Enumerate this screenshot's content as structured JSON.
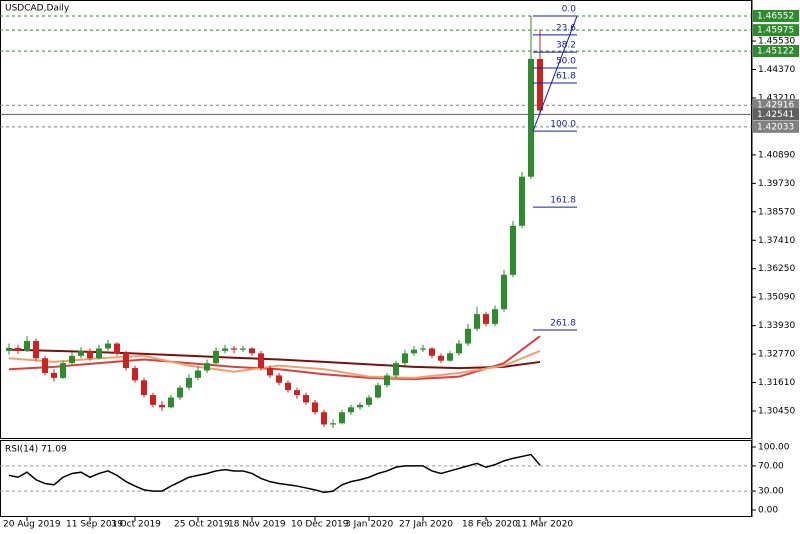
{
  "chart_data": [
    {
      "type": "candlestick",
      "title": "USDCAD,Daily",
      "categories": [
        null,
        null,
        "20 Aug 2019",
        null,
        null,
        null,
        null,
        null,
        null,
        "11 Sep 2019",
        null,
        null,
        null,
        null,
        "3 Oct 2019",
        null,
        null,
        null,
        null,
        null,
        null,
        "25 Oct 2019",
        null,
        null,
        null,
        null,
        null,
        "18 Nov 2019",
        null,
        null,
        null,
        null,
        null,
        null,
        "10 Dec 2019",
        null,
        null,
        null,
        null,
        null,
        "3 Jan 2020",
        null,
        null,
        null,
        null,
        null,
        "27 Jan 2020",
        null,
        null,
        null,
        null,
        null,
        null,
        "18 Feb 2020",
        null,
        null,
        null,
        null,
        null,
        "11 Mar 2020"
      ],
      "open": [
        1.329,
        1.3302,
        1.329,
        1.333,
        1.326,
        1.32,
        1.318,
        1.324,
        1.327,
        1.329,
        1.326,
        1.33,
        1.332,
        1.328,
        1.322,
        1.317,
        1.311,
        1.307,
        1.306,
        1.31,
        1.314,
        1.318,
        1.321,
        1.324,
        1.329,
        1.33,
        1.3295,
        1.33,
        1.328,
        1.322,
        1.319,
        1.316,
        1.313,
        1.311,
        1.308,
        1.304,
        1.299,
        1.2995,
        1.304,
        1.306,
        1.307,
        1.31,
        1.315,
        1.319,
        1.324,
        1.328,
        1.3295,
        1.33,
        1.327,
        1.325,
        1.328,
        1.332,
        1.338,
        1.344,
        1.34,
        1.346,
        1.36,
        1.38,
        1.4,
        1.448
      ],
      "high": [
        1.332,
        1.3315,
        1.335,
        1.334,
        1.327,
        1.3215,
        1.325,
        1.3285,
        1.3305,
        1.33,
        1.3315,
        1.3335,
        1.3325,
        1.329,
        1.323,
        1.318,
        1.312,
        1.3085,
        1.311,
        1.315,
        1.3195,
        1.3225,
        1.3255,
        1.3305,
        1.3315,
        1.331,
        1.331,
        1.3305,
        1.329,
        1.323,
        1.32,
        1.317,
        1.314,
        1.312,
        1.309,
        1.305,
        1.301,
        1.305,
        1.307,
        1.308,
        1.311,
        1.316,
        1.32,
        1.325,
        1.3295,
        1.331,
        1.3315,
        1.3305,
        1.328,
        1.329,
        1.3335,
        1.34,
        1.347,
        1.345,
        1.3475,
        1.362,
        1.382,
        1.402,
        1.4655,
        1.46
      ],
      "low": [
        1.3275,
        1.3278,
        1.3285,
        1.325,
        1.319,
        1.3165,
        1.3175,
        1.323,
        1.326,
        1.325,
        1.3255,
        1.329,
        1.327,
        1.321,
        1.316,
        1.31,
        1.306,
        1.3045,
        1.3055,
        1.309,
        1.313,
        1.317,
        1.32,
        1.3235,
        1.328,
        1.328,
        1.3285,
        1.327,
        1.321,
        1.318,
        1.315,
        1.312,
        1.3095,
        1.307,
        1.303,
        1.298,
        1.2975,
        1.299,
        1.303,
        1.305,
        1.306,
        1.3095,
        1.314,
        1.318,
        1.323,
        1.327,
        1.3285,
        1.326,
        1.324,
        1.3245,
        1.327,
        1.331,
        1.337,
        1.339,
        1.339,
        1.345,
        1.359,
        1.379,
        1.399,
        1.425
      ],
      "close": [
        1.3302,
        1.329,
        1.333,
        1.326,
        1.32,
        1.318,
        1.324,
        1.327,
        1.329,
        1.326,
        1.33,
        1.332,
        1.328,
        1.322,
        1.317,
        1.311,
        1.307,
        1.306,
        1.31,
        1.314,
        1.318,
        1.321,
        1.324,
        1.329,
        1.33,
        1.3295,
        1.33,
        1.328,
        1.322,
        1.319,
        1.316,
        1.313,
        1.311,
        1.308,
        1.304,
        1.299,
        1.2995,
        1.304,
        1.306,
        1.307,
        1.31,
        1.315,
        1.319,
        1.324,
        1.328,
        1.3295,
        1.33,
        1.327,
        1.325,
        1.328,
        1.332,
        1.338,
        1.344,
        1.34,
        1.346,
        1.36,
        1.38,
        1.4,
        1.448,
        1.427
      ],
      "up_color": "#2e8b2e",
      "down_color": "#cc2222",
      "moving_averages": [
        {
          "color": "#7a1010",
          "x": [
            0,
            5,
            10,
            15,
            20,
            25,
            30,
            35,
            40,
            45,
            50,
            55,
            59
          ],
          "values": [
            1.3295,
            1.329,
            1.3285,
            1.3278,
            1.327,
            1.3262,
            1.3255,
            1.3245,
            1.3235,
            1.3225,
            1.322,
            1.3225,
            1.3245
          ]
        },
        {
          "color": "#d84040",
          "x": [
            0,
            5,
            10,
            15,
            20,
            25,
            30,
            35,
            40,
            45,
            50,
            55,
            59
          ],
          "values": [
            1.3215,
            1.3225,
            1.324,
            1.3255,
            1.324,
            1.3225,
            1.3215,
            1.3195,
            1.318,
            1.3175,
            1.3185,
            1.324,
            1.335
          ]
        },
        {
          "color": "#f0a070",
          "x": [
            0,
            5,
            10,
            15,
            20,
            25,
            30,
            35,
            40,
            45,
            50,
            55,
            59
          ],
          "values": [
            1.326,
            1.3245,
            1.326,
            1.327,
            1.323,
            1.3205,
            1.323,
            1.3215,
            1.3185,
            1.318,
            1.32,
            1.323,
            1.329
          ]
        }
      ],
      "ylim": [
        1.29349,
        1.47204
      ],
      "yticks": [
        {
          "value": 1.4553,
          "label": "1.45530"
        },
        {
          "value": 1.4437,
          "label": "1.44370"
        },
        {
          "value": 1.4321,
          "label": "1.43210"
        },
        {
          "value": 1.4089,
          "label": "1.40890"
        },
        {
          "value": 1.3973,
          "label": "1.39730"
        },
        {
          "value": 1.3857,
          "label": "1.38570"
        },
        {
          "value": 1.3741,
          "label": "1.37410"
        },
        {
          "value": 1.3625,
          "label": "1.36250"
        },
        {
          "value": 1.3509,
          "label": "1.35090"
        },
        {
          "value": 1.3393,
          "label": "1.33930"
        },
        {
          "value": 1.3277,
          "label": "1.32770"
        },
        {
          "value": 1.3161,
          "label": "1.31610"
        },
        {
          "value": 1.3045,
          "label": "1.30450"
        }
      ],
      "price_lines": [
        {
          "value": 1.46552,
          "label": "1.46552",
          "color": "#2e8b2e"
        },
        {
          "value": 1.45975,
          "label": "1.45975",
          "color": "#2e8b2e"
        },
        {
          "value": 1.45122,
          "label": "1.45122",
          "color": "#2e8b2e"
        },
        {
          "value": 1.42916,
          "label": "1.42916",
          "color": "#808080"
        },
        {
          "value": 1.42541,
          "label": "1.42541",
          "color": "#606060"
        },
        {
          "value": 1.42033,
          "label": "1.42033",
          "color": "#808080"
        }
      ],
      "fib_color": "#1a1ab0",
      "fib_levels": [
        {
          "label": "0.0",
          "value": 1.4655
        },
        {
          "label": "23.6",
          "value": 1.4578
        },
        {
          "label": "38.2",
          "value": 1.4508
        },
        {
          "label": "50.0",
          "value": 1.4443
        },
        {
          "label": "61.8",
          "value": 1.4382
        },
        {
          "label": "100.0",
          "value": 1.4186
        },
        {
          "label": "161.8",
          "value": 1.3876
        },
        {
          "label": "261.8",
          "value": 1.3375
        }
      ]
    },
    {
      "type": "line",
      "title": "RSI(14) 71.09",
      "color": "#000000",
      "values": [
        55,
        52,
        60,
        48,
        42,
        40,
        52,
        58,
        60,
        52,
        58,
        62,
        55,
        45,
        38,
        32,
        30,
        30,
        38,
        45,
        52,
        55,
        58,
        62,
        64,
        62,
        62,
        58,
        50,
        45,
        42,
        40,
        38,
        35,
        32,
        28,
        30,
        40,
        45,
        48,
        52,
        58,
        62,
        68,
        70,
        70,
        70,
        62,
        58,
        62,
        66,
        70,
        74,
        68,
        72,
        78,
        82,
        85,
        88,
        71.09
      ],
      "ylim": [
        0,
        100
      ],
      "yticks": [
        {
          "value": 100,
          "label": "100.00"
        },
        {
          "value": 70,
          "label": "70.00"
        },
        {
          "value": 30,
          "label": "30.00"
        },
        {
          "value": 0,
          "label": "0.00"
        }
      ]
    }
  ]
}
